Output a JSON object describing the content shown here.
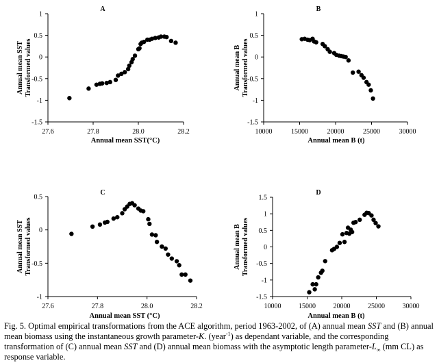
{
  "chart_data": [
    {
      "type": "scatter",
      "title": "A",
      "xlabel": "Annual mean SST(°C)",
      "ylabel_line1": "Annual mean SST",
      "ylabel_line2": "Transformed values",
      "xlim": [
        27.6,
        28.2
      ],
      "ylim": [
        -1.5,
        1
      ],
      "x_ticks": [
        {
          "v": 27.6,
          "label": "27.6"
        },
        {
          "v": 27.8,
          "label": "27.8"
        },
        {
          "v": 28.0,
          "label": "28.0"
        },
        {
          "v": 28.2,
          "label": "28.2"
        }
      ],
      "y_ticks": [
        {
          "v": -1.5,
          "label": "-1.5"
        },
        {
          "v": -1,
          "label": "-1"
        },
        {
          "v": -0.5,
          "label": "-0.5"
        },
        {
          "v": 0,
          "label": "0"
        },
        {
          "v": 0.5,
          "label": "0.5"
        },
        {
          "v": 1,
          "label": "1"
        }
      ],
      "points": [
        [
          27.695,
          -0.95
        ],
        [
          27.78,
          -0.73
        ],
        [
          27.815,
          -0.64
        ],
        [
          27.83,
          -0.62
        ],
        [
          27.84,
          -0.61
        ],
        [
          27.86,
          -0.6
        ],
        [
          27.875,
          -0.58
        ],
        [
          27.9,
          -0.53
        ],
        [
          27.91,
          -0.43
        ],
        [
          27.925,
          -0.39
        ],
        [
          27.94,
          -0.35
        ],
        [
          27.955,
          -0.28
        ],
        [
          27.96,
          -0.2
        ],
        [
          27.97,
          -0.12
        ],
        [
          27.975,
          -0.05
        ],
        [
          27.985,
          0.03
        ],
        [
          28.0,
          0.18
        ],
        [
          28.005,
          0.2
        ],
        [
          28.01,
          0.3
        ],
        [
          28.015,
          0.33
        ],
        [
          28.025,
          0.35
        ],
        [
          28.04,
          0.4
        ],
        [
          28.05,
          0.4
        ],
        [
          28.06,
          0.42
        ],
        [
          28.075,
          0.44
        ],
        [
          28.09,
          0.45
        ],
        [
          28.1,
          0.47
        ],
        [
          28.115,
          0.47
        ],
        [
          28.125,
          0.46
        ],
        [
          28.145,
          0.37
        ],
        [
          28.165,
          0.33
        ]
      ]
    },
    {
      "type": "scatter",
      "title": "B",
      "xlabel": "Annual  mean  B (t)",
      "ylabel_line1": "Annual mean B",
      "ylabel_line2": "Transformed values",
      "xlim": [
        10000,
        30000
      ],
      "ylim": [
        -1.5,
        1
      ],
      "x_ticks": [
        {
          "v": 10000,
          "label": "10000"
        },
        {
          "v": 15000,
          "label": "15000"
        },
        {
          "v": 20000,
          "label": "20000"
        },
        {
          "v": 25000,
          "label": "25000"
        },
        {
          "v": 30000,
          "label": "30000"
        }
      ],
      "y_ticks": [
        {
          "v": -1.5,
          "label": "-1.5"
        },
        {
          "v": -1,
          "label": "-1"
        },
        {
          "v": -0.5,
          "label": "-0.5"
        },
        {
          "v": 0,
          "label": "0"
        },
        {
          "v": 0.5,
          "label": "0.5"
        },
        {
          "v": 1,
          "label": "1"
        }
      ],
      "points": [
        [
          15300,
          0.41
        ],
        [
          15700,
          0.42
        ],
        [
          16100,
          0.4
        ],
        [
          16400,
          0.39
        ],
        [
          16800,
          0.42
        ],
        [
          17000,
          0.36
        ],
        [
          17300,
          0.34
        ],
        [
          18200,
          0.3
        ],
        [
          18500,
          0.25
        ],
        [
          18900,
          0.18
        ],
        [
          19200,
          0.12
        ],
        [
          19800,
          0.09
        ],
        [
          20100,
          0.05
        ],
        [
          20500,
          0.03
        ],
        [
          20800,
          0.02
        ],
        [
          21100,
          0.01
        ],
        [
          21400,
          0.0
        ],
        [
          21800,
          -0.08
        ],
        [
          22400,
          -0.36
        ],
        [
          23200,
          -0.34
        ],
        [
          23600,
          -0.42
        ],
        [
          23900,
          -0.48
        ],
        [
          24300,
          -0.58
        ],
        [
          24600,
          -0.64
        ],
        [
          24900,
          -0.77
        ],
        [
          25200,
          -0.96
        ]
      ]
    },
    {
      "type": "scatter",
      "title": "C",
      "xlabel": "Annual  mean  SST (°C)",
      "ylabel_line1": "Annual mean SST",
      "ylabel_line2": "Transformed values",
      "xlim": [
        27.6,
        28.2
      ],
      "ylim": [
        -1,
        0.5
      ],
      "x_ticks": [
        {
          "v": 27.6,
          "label": "27.6"
        },
        {
          "v": 27.8,
          "label": "27.8"
        },
        {
          "v": 28.0,
          "label": "28.0"
        },
        {
          "v": 28.2,
          "label": "28.2"
        }
      ],
      "y_ticks": [
        {
          "v": -1,
          "label": "-1"
        },
        {
          "v": -0.5,
          "label": "-0.5"
        },
        {
          "v": 0,
          "label": "0"
        },
        {
          "v": 0.5,
          "label": "0.5"
        }
      ],
      "points": [
        [
          27.695,
          -0.06
        ],
        [
          27.78,
          0.05
        ],
        [
          27.81,
          0.08
        ],
        [
          27.83,
          0.11
        ],
        [
          27.84,
          0.12
        ],
        [
          27.865,
          0.17
        ],
        [
          27.88,
          0.19
        ],
        [
          27.9,
          0.25
        ],
        [
          27.91,
          0.31
        ],
        [
          27.92,
          0.35
        ],
        [
          27.93,
          0.39
        ],
        [
          27.94,
          0.4
        ],
        [
          27.95,
          0.37
        ],
        [
          27.965,
          0.32
        ],
        [
          27.975,
          0.29
        ],
        [
          27.985,
          0.28
        ],
        [
          28.005,
          0.16
        ],
        [
          28.01,
          0.09
        ],
        [
          28.02,
          -0.07
        ],
        [
          28.035,
          -0.08
        ],
        [
          28.04,
          -0.18
        ],
        [
          28.06,
          -0.25
        ],
        [
          28.075,
          -0.28
        ],
        [
          28.085,
          -0.37
        ],
        [
          28.1,
          -0.43
        ],
        [
          28.12,
          -0.47
        ],
        [
          28.13,
          -0.53
        ],
        [
          28.14,
          -0.67
        ],
        [
          28.155,
          -0.67
        ],
        [
          28.175,
          -0.76
        ]
      ]
    },
    {
      "type": "scatter",
      "title": "D",
      "xlabel": "Annual  mean  B (t)",
      "ylabel_line1": "Annual mean B",
      "ylabel_line2": "Transformed values",
      "xlim": [
        10000,
        30000
      ],
      "ylim": [
        -1.5,
        1.5
      ],
      "x_ticks": [
        {
          "v": 10000,
          "label": "10000"
        },
        {
          "v": 15000,
          "label": "15000"
        },
        {
          "v": 20000,
          "label": "20000"
        },
        {
          "v": 25000,
          "label": "25000"
        },
        {
          "v": 30000,
          "label": "30000"
        }
      ],
      "y_ticks": [
        {
          "v": -1.5,
          "label": "-1.5"
        },
        {
          "v": -1,
          "label": "-1"
        },
        {
          "v": -0.5,
          "label": "-0.5"
        },
        {
          "v": 0,
          "label": "0"
        },
        {
          "v": 0.5,
          "label": "0.5"
        },
        {
          "v": 1,
          "label": "1"
        },
        {
          "v": 1.5,
          "label": "1.5"
        }
      ],
      "points": [
        [
          15300,
          -1.37
        ],
        [
          15800,
          -1.13
        ],
        [
          16100,
          -1.28
        ],
        [
          16300,
          -1.13
        ],
        [
          16600,
          -0.92
        ],
        [
          17000,
          -0.78
        ],
        [
          17200,
          -0.72
        ],
        [
          17600,
          -0.43
        ],
        [
          18600,
          -0.1
        ],
        [
          18900,
          -0.06
        ],
        [
          19300,
          0.0
        ],
        [
          19700,
          0.12
        ],
        [
          20100,
          0.38
        ],
        [
          20400,
          0.15
        ],
        [
          20700,
          0.42
        ],
        [
          20900,
          0.58
        ],
        [
          21100,
          0.4
        ],
        [
          21300,
          0.52
        ],
        [
          21500,
          0.45
        ],
        [
          21700,
          0.73
        ],
        [
          22000,
          0.75
        ],
        [
          22600,
          0.82
        ],
        [
          23300,
          0.97
        ],
        [
          23600,
          1.03
        ],
        [
          23900,
          1.02
        ],
        [
          24300,
          0.95
        ],
        [
          24600,
          0.82
        ],
        [
          24900,
          0.72
        ],
        [
          25300,
          0.62
        ]
      ]
    }
  ],
  "caption": {
    "lead": "Fig. 5. Optimal empirical transformations from the ACE algorithm, period 1963-2002, of (A) annual mean ",
    "sst1": "SST",
    "mid1": " and (B) annual mean biomass using the instantaneous growth parameter-",
    "k": "K",
    "mid2": ". (year",
    "exp": "-1",
    "mid3": ") as dependant variable, and the corresponding transformation of (C) annual mean ",
    "sst2": "SST",
    "mid4": " and (D) annual mean biomass with the asymptotic length parameter-",
    "linf": "L",
    "inf": "∞",
    "tail": " (mm CL) as response variable."
  }
}
